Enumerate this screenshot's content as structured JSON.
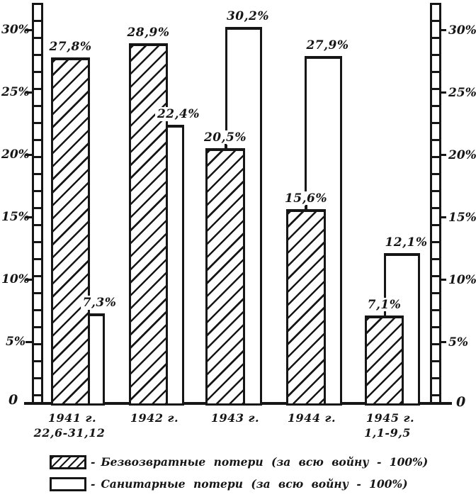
{
  "chart_data": {
    "type": "bar",
    "title": "",
    "categories": [
      "1941 г.",
      "1942 г.",
      "1943 г.",
      "1944 г.",
      "1945 г."
    ],
    "category_sublabels": [
      "22,6-31,12",
      "",
      "",
      "",
      "1,1-9,5"
    ],
    "series": [
      {
        "name": "Безвозвратные потери (за всю войну - 100%)",
        "pattern": "hatched",
        "values": [
          27.8,
          28.9,
          20.5,
          15.6,
          7.1
        ],
        "value_labels": [
          "27,8%",
          "28,9%",
          "20,5%",
          "15,6%",
          "7,1%"
        ]
      },
      {
        "name": "Санитарные потери (за всю войну - 100%)",
        "pattern": "plain",
        "values": [
          7.3,
          22.4,
          30.2,
          27.9,
          12.1
        ],
        "value_labels": [
          "7,3%",
          "22,4%",
          "30,2%",
          "27,9%",
          "12,1%"
        ]
      }
    ],
    "ylim": [
      0,
      31
    ],
    "yticks": [
      30,
      25,
      20,
      15,
      10,
      5
    ],
    "ytick_labels": [
      "30%",
      "25%",
      "20%",
      "15%",
      "10%",
      "5%"
    ],
    "zero_label": "0",
    "legend_prefix": "-",
    "legend_position": "bottom",
    "grid": "off",
    "ink_color": "#161616",
    "background_color": "#ffffff"
  }
}
